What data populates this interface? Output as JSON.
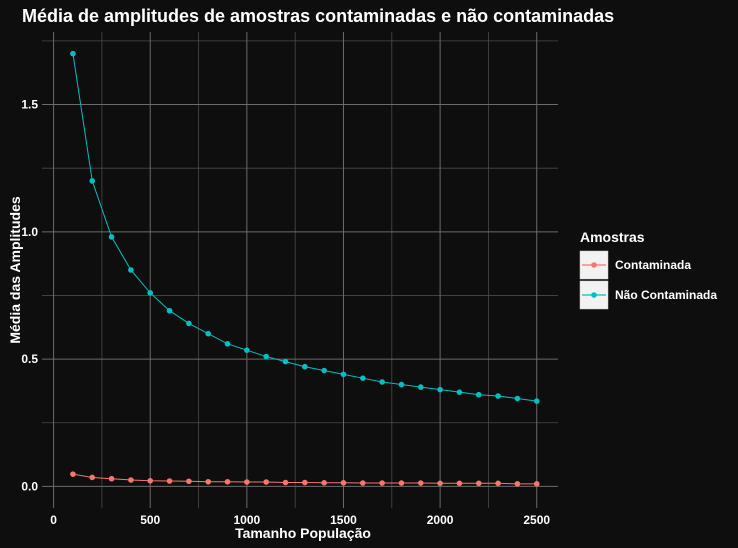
{
  "chart_data": {
    "type": "line",
    "title": "Média de amplitudes de amostras contaminadas e não contaminadas",
    "xlabel": "Tamanho População",
    "ylabel": "Média das Amplitudes",
    "xlim": [
      -60,
      2610
    ],
    "ylim": [
      -0.085,
      1.785
    ],
    "x_ticks": [
      0,
      500,
      1000,
      1500,
      2000,
      2500
    ],
    "x_tick_labels": [
      "0",
      "500",
      "1000",
      "1500",
      "2000",
      "2500"
    ],
    "y_ticks": [
      0.0,
      0.5,
      1.0,
      1.5
    ],
    "y_tick_labels": [
      "0.0",
      "0.5",
      "1.0",
      "1.5"
    ],
    "grid": true,
    "legend": {
      "title": "Amostras",
      "position": "right"
    },
    "x": [
      100,
      200,
      300,
      400,
      500,
      600,
      700,
      800,
      900,
      1000,
      1100,
      1200,
      1300,
      1400,
      1500,
      1600,
      1700,
      1800,
      1900,
      2000,
      2100,
      2200,
      2300,
      2400,
      2500
    ],
    "series": [
      {
        "name": "Contaminada",
        "color": "#f8766d",
        "values": [
          0.048,
          0.035,
          0.03,
          0.025,
          0.022,
          0.021,
          0.02,
          0.018,
          0.018,
          0.017,
          0.017,
          0.015,
          0.015,
          0.014,
          0.014,
          0.013,
          0.013,
          0.013,
          0.013,
          0.012,
          0.012,
          0.012,
          0.012,
          0.01,
          0.01
        ]
      },
      {
        "name": "Não Contaminada",
        "color": "#00bfc4",
        "values": [
          1.7,
          1.2,
          0.98,
          0.85,
          0.76,
          0.69,
          0.64,
          0.6,
          0.56,
          0.535,
          0.51,
          0.49,
          0.47,
          0.455,
          0.44,
          0.425,
          0.41,
          0.4,
          0.39,
          0.38,
          0.37,
          0.36,
          0.355,
          0.345,
          0.335
        ]
      }
    ]
  }
}
